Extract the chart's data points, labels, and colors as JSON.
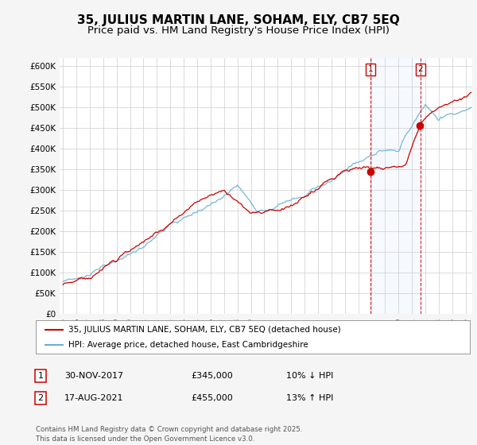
{
  "title": "35, JULIUS MARTIN LANE, SOHAM, ELY, CB7 5EQ",
  "subtitle": "Price paid vs. HM Land Registry's House Price Index (HPI)",
  "legend_line1": "35, JULIUS MARTIN LANE, SOHAM, ELY, CB7 5EQ (detached house)",
  "legend_line2": "HPI: Average price, detached house, East Cambridgeshire",
  "annotation1_date": "30-NOV-2017",
  "annotation1_price": "£345,000",
  "annotation1_hpi": "10% ↓ HPI",
  "annotation1_year": 2017.917,
  "annotation1_value": 345000,
  "annotation2_date": "17-AUG-2021",
  "annotation2_price": "£455,000",
  "annotation2_hpi": "13% ↑ HPI",
  "annotation2_year": 2021.625,
  "annotation2_value": 455000,
  "ylim": [
    0,
    620000
  ],
  "yticks": [
    0,
    50000,
    100000,
    150000,
    200000,
    250000,
    300000,
    350000,
    400000,
    450000,
    500000,
    550000,
    600000
  ],
  "ytick_labels": [
    "£0",
    "£50K",
    "£100K",
    "£150K",
    "£200K",
    "£250K",
    "£300K",
    "£350K",
    "£400K",
    "£450K",
    "£500K",
    "£550K",
    "£600K"
  ],
  "xlim_start": 1994.75,
  "xlim_end": 2025.5,
  "hpi_color": "#6baed6",
  "price_color": "#cc0000",
  "shade_color": "#ddeeff",
  "background_color": "#f5f5f5",
  "plot_bg_color": "#ffffff",
  "footer": "Contains HM Land Registry data © Crown copyright and database right 2025.\nThis data is licensed under the Open Government Licence v3.0.",
  "title_fontsize": 11,
  "subtitle_fontsize": 9.5
}
